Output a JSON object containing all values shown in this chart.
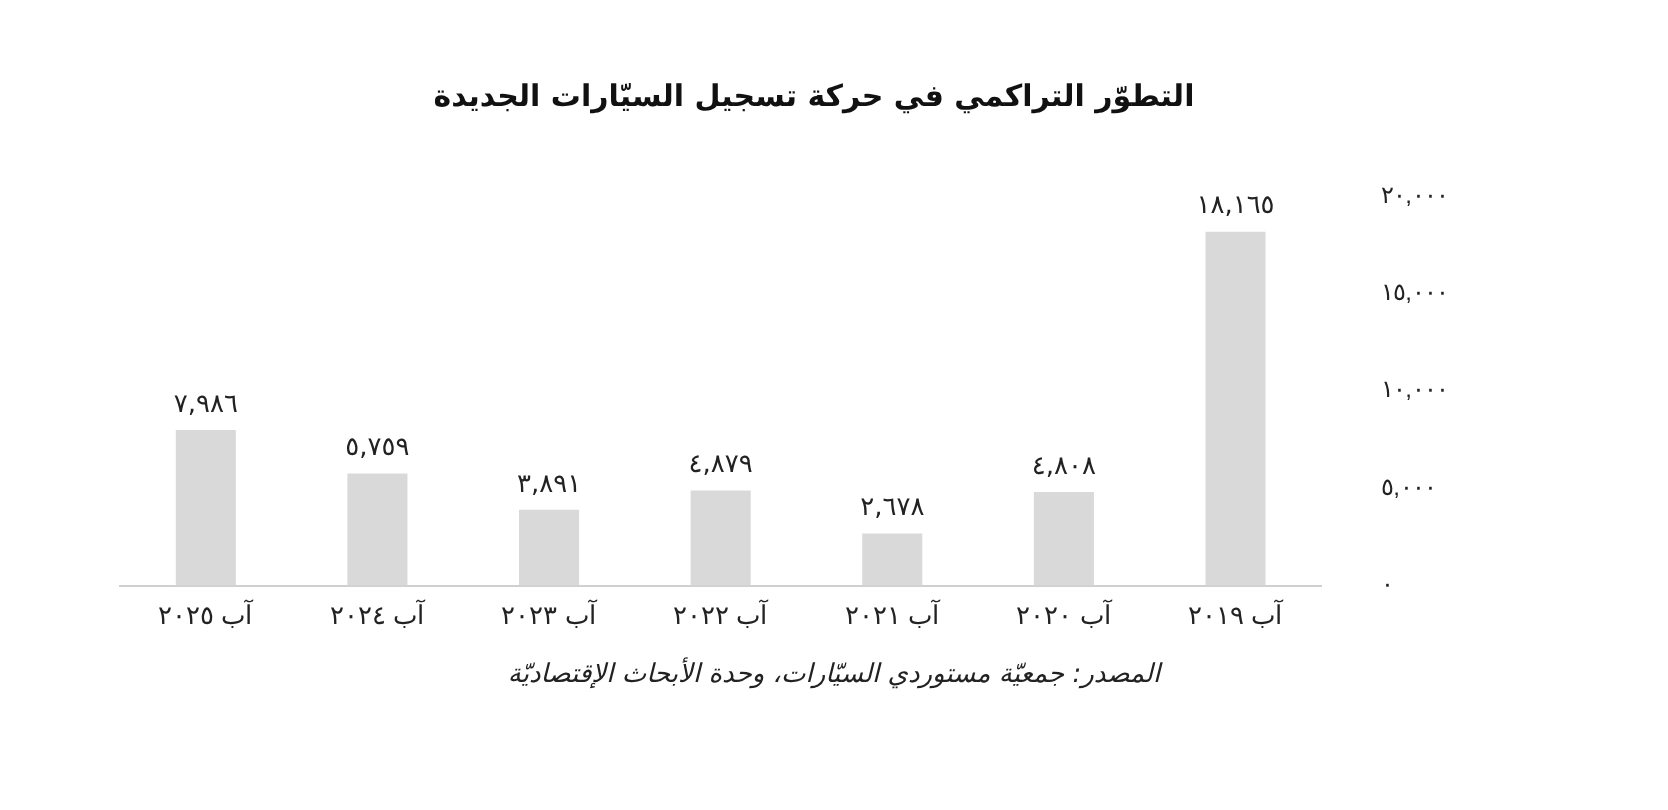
{
  "chart_data": {
    "type": "bar",
    "title": "التطوّر التراكمي في حركة تسجيل السيّارات الجديدة",
    "categories": [
      "آب ٢٠٢٥",
      "آب ٢٠٢٤",
      "آب ٢٠٢٣",
      "آب ٢٠٢٢",
      "آب ٢٠٢١",
      "آب ٢٠٢٠",
      "آب ٢٠١٩"
    ],
    "values": [
      7986,
      5759,
      3891,
      4879,
      2678,
      4808,
      18165
    ],
    "value_labels": [
      "٧,٩٨٦",
      "٥,٧٥٩",
      "٣,٨٩١",
      "٤,٨٧٩",
      "٢,٦٧٨",
      "٤,٨٠٨",
      "١٨,١٦٥"
    ],
    "color": "#d9d9d9",
    "ylim": [
      0,
      20000
    ],
    "yticks": [
      {
        "value": 0,
        "label": "٠"
      },
      {
        "value": 5000,
        "label": "٥,٠٠٠"
      },
      {
        "value": 10000,
        "label": "١٠,٠٠٠"
      },
      {
        "value": 15000,
        "label": "١٥,٠٠٠"
      },
      {
        "value": 20000,
        "label": "٢٠,٠٠٠"
      }
    ],
    "grid": false,
    "legend": false,
    "annotations": [
      "المصدر: جمعيّة مستوردي السيّارات، وحدة الأبحاث الإقتصاديّة"
    ]
  }
}
